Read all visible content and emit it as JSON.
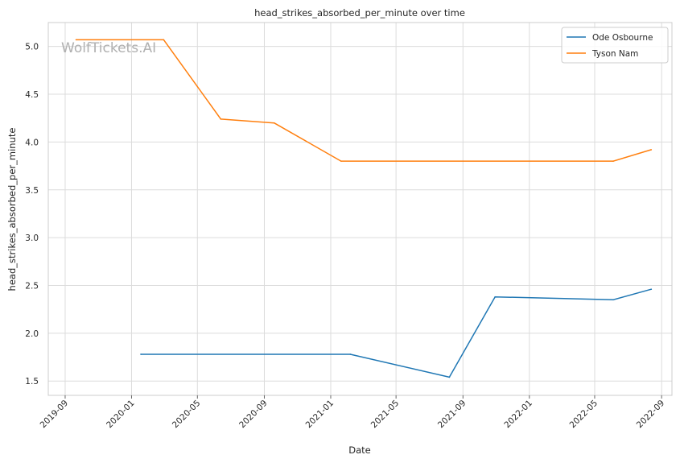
{
  "chart_data": {
    "type": "line",
    "title": "head_strikes_absorbed_per_minute over time",
    "xlabel": "Date",
    "ylabel": "head_strikes_absorbed_per_minute",
    "watermark": "WolfTickets.AI",
    "xlim": [
      "2019-08-01",
      "2022-09-20"
    ],
    "ylim": [
      1.35,
      5.25
    ],
    "grid": true,
    "legend_position": "top-right",
    "x_ticks": [
      "2019-09",
      "2020-01",
      "2020-05",
      "2020-09",
      "2021-01",
      "2021-05",
      "2021-09",
      "2022-01",
      "2022-05",
      "2022-09"
    ],
    "y_ticks": [
      "1.5",
      "2.0",
      "2.5",
      "3.0",
      "3.5",
      "4.0",
      "4.5",
      "5.0"
    ],
    "series": [
      {
        "name": "Ode Osbourne",
        "color": "#1f77b4",
        "points": [
          {
            "x": "2020-01-18",
            "y": 1.78
          },
          {
            "x": "2021-02-06",
            "y": 1.78
          },
          {
            "x": "2021-08-07",
            "y": 1.54
          },
          {
            "x": "2021-10-30",
            "y": 2.38
          },
          {
            "x": "2022-06-04",
            "y": 2.35
          },
          {
            "x": "2022-08-13",
            "y": 2.46
          }
        ]
      },
      {
        "name": "Tyson Nam",
        "color": "#ff7f0e",
        "points": [
          {
            "x": "2019-09-21",
            "y": 5.07
          },
          {
            "x": "2020-02-29",
            "y": 5.07
          },
          {
            "x": "2020-06-13",
            "y": 4.24
          },
          {
            "x": "2020-09-19",
            "y": 4.2
          },
          {
            "x": "2021-01-20",
            "y": 3.8
          },
          {
            "x": "2022-06-04",
            "y": 3.8
          },
          {
            "x": "2022-08-13",
            "y": 3.92
          }
        ]
      }
    ]
  }
}
